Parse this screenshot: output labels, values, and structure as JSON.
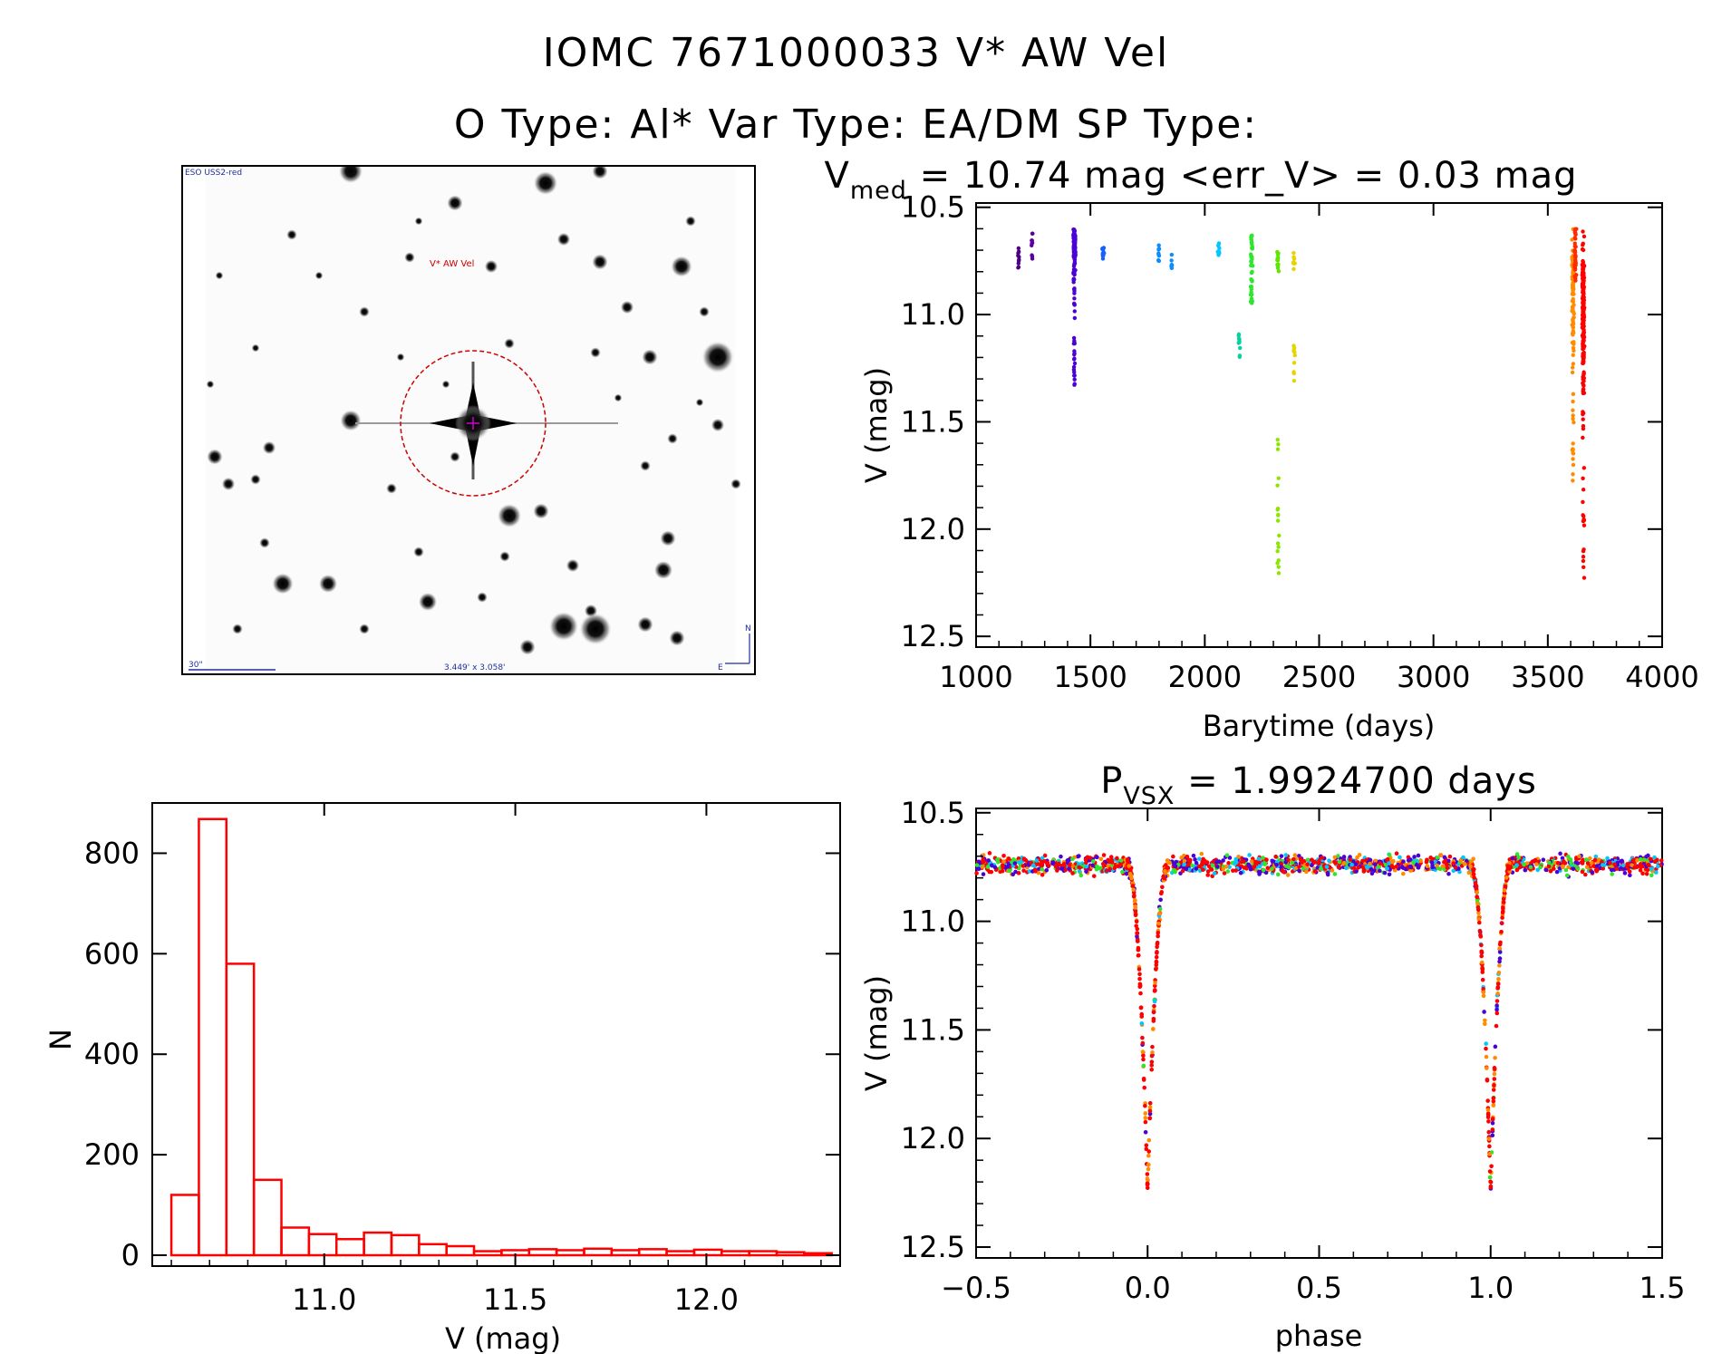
{
  "header": {
    "line1": "IOMC 7671000033    V* AW Vel",
    "line2": "O Type: Al*  Var Type: EA/DM  SP Type:"
  },
  "image_panel": {
    "survey_label": "ESO USS2-red",
    "target_label": "V* AW Vel",
    "scale_label": "30\"",
    "fov_label": "3.449' x 3.058'",
    "north_label": "N",
    "east_label": "E"
  },
  "colors": {
    "histogram": "#ff0000",
    "circle": "#cc0000",
    "label_blue": "#1f2f9f",
    "season_colors": [
      "#4b0082",
      "#5a009f",
      "#4b00d8",
      "#1560ff",
      "#00a2ff",
      "#00d2c4",
      "#2ee62e",
      "#8ce600",
      "#e6d400",
      "#ff8c00",
      "#ff0000"
    ]
  },
  "chart_data": [
    {
      "id": "lightcurve",
      "type": "scatter",
      "title_prefix": "V",
      "title_sub": "med",
      "title_rest": " = 10.74 mag <err_V> = 0.03 mag",
      "xlabel": "Barytime (days)",
      "ylabel": "V (mag)",
      "xlim": [
        1000,
        4000
      ],
      "ylim": [
        12.55,
        10.48
      ],
      "xticks": [
        1000,
        1500,
        2000,
        2500,
        3000,
        3500,
        4000
      ],
      "yticks": [
        10.5,
        11.0,
        11.5,
        12.0,
        12.5
      ],
      "ytick_labels": [
        "10.5",
        "11.0",
        "11.5",
        "12.0",
        "12.5"
      ],
      "groups": [
        {
          "x": 1185,
          "ymin": 10.68,
          "ymax": 10.8,
          "n": 10,
          "color": "#4b0082"
        },
        {
          "x": 1245,
          "ymin": 10.62,
          "ymax": 10.74,
          "n": 10,
          "color": "#5a009f"
        },
        {
          "x": 1430,
          "ymin": 10.6,
          "ymax": 10.86,
          "n": 160,
          "color": "#4b00d8",
          "tail": 11.37
        },
        {
          "x": 1555,
          "ymin": 10.65,
          "ymax": 10.74,
          "n": 10,
          "color": "#1560ff"
        },
        {
          "x": 1800,
          "ymin": 10.66,
          "ymax": 10.75,
          "n": 10,
          "color": "#0b8cff"
        },
        {
          "x": 1855,
          "ymin": 10.72,
          "ymax": 10.79,
          "n": 6,
          "color": "#0b8cff"
        },
        {
          "x": 2060,
          "ymin": 10.65,
          "ymax": 10.73,
          "n": 10,
          "color": "#00c8ff"
        },
        {
          "x": 2150,
          "ymin": 11.07,
          "ymax": 11.23,
          "n": 10,
          "color": "#00d2a0"
        },
        {
          "x": 2205,
          "ymin": 10.63,
          "ymax": 10.95,
          "n": 40,
          "color": "#2ee62e"
        },
        {
          "x": 2320,
          "ymin": 10.68,
          "ymax": 10.8,
          "n": 14,
          "color": "#5ee600"
        },
        {
          "x": 2320,
          "ymin": 11.57,
          "ymax": 12.26,
          "n": 18,
          "color": "#8ce600"
        },
        {
          "x": 2390,
          "ymin": 10.7,
          "ymax": 10.82,
          "n": 10,
          "color": "#e6d400"
        },
        {
          "x": 2390,
          "ymin": 11.14,
          "ymax": 11.33,
          "n": 10,
          "color": "#e6d400"
        },
        {
          "x": 3610,
          "ymin": 10.6,
          "ymax": 11.8,
          "n": 110,
          "color": "#ff8c00"
        },
        {
          "x": 3620,
          "ymin": 10.6,
          "ymax": 10.85,
          "n": 40,
          "color": "#ff2a00"
        },
        {
          "x": 3655,
          "ymin": 10.6,
          "ymax": 12.24,
          "n": 230,
          "color": "#ff0000"
        }
      ]
    },
    {
      "id": "histogram",
      "type": "bar",
      "xlabel": "V (mag)",
      "ylabel": "N",
      "xlim": [
        10.55,
        12.35
      ],
      "ylim": [
        0,
        900
      ],
      "xticks": [
        11.0,
        11.5,
        12.0
      ],
      "xtick_labels": [
        "11.0",
        "11.5",
        "12.0"
      ],
      "yticks": [
        0,
        200,
        400,
        600,
        800
      ],
      "bin_start": 10.6,
      "bin_width": 0.072,
      "values": [
        120,
        868,
        580,
        150,
        55,
        42,
        32,
        45,
        40,
        22,
        18,
        8,
        10,
        12,
        10,
        13,
        10,
        12,
        8,
        11,
        8,
        8,
        6,
        4
      ]
    },
    {
      "id": "phased",
      "type": "scatter",
      "title_prefix": "P",
      "title_sub": "VSX",
      "title_rest": " = 1.9924700 days",
      "xlabel": "phase",
      "ylabel": "V (mag)",
      "xlim": [
        -0.5,
        1.5
      ],
      "ylim": [
        12.55,
        10.48
      ],
      "xticks": [
        -0.5,
        0.0,
        0.5,
        1.0,
        1.5
      ],
      "xtick_labels": [
        "−0.5",
        "0.0",
        "0.5",
        "1.0",
        "1.5"
      ],
      "yticks": [
        10.5,
        11.0,
        11.5,
        12.0,
        12.5
      ],
      "ytick_labels": [
        "10.5",
        "11.0",
        "11.5",
        "12.0",
        "12.5"
      ],
      "period_days": 1.99247,
      "baseline_mag": 10.74,
      "primary_depth_mag": 1.5,
      "eclipse_halfwidth_phase": 0.06
    }
  ]
}
